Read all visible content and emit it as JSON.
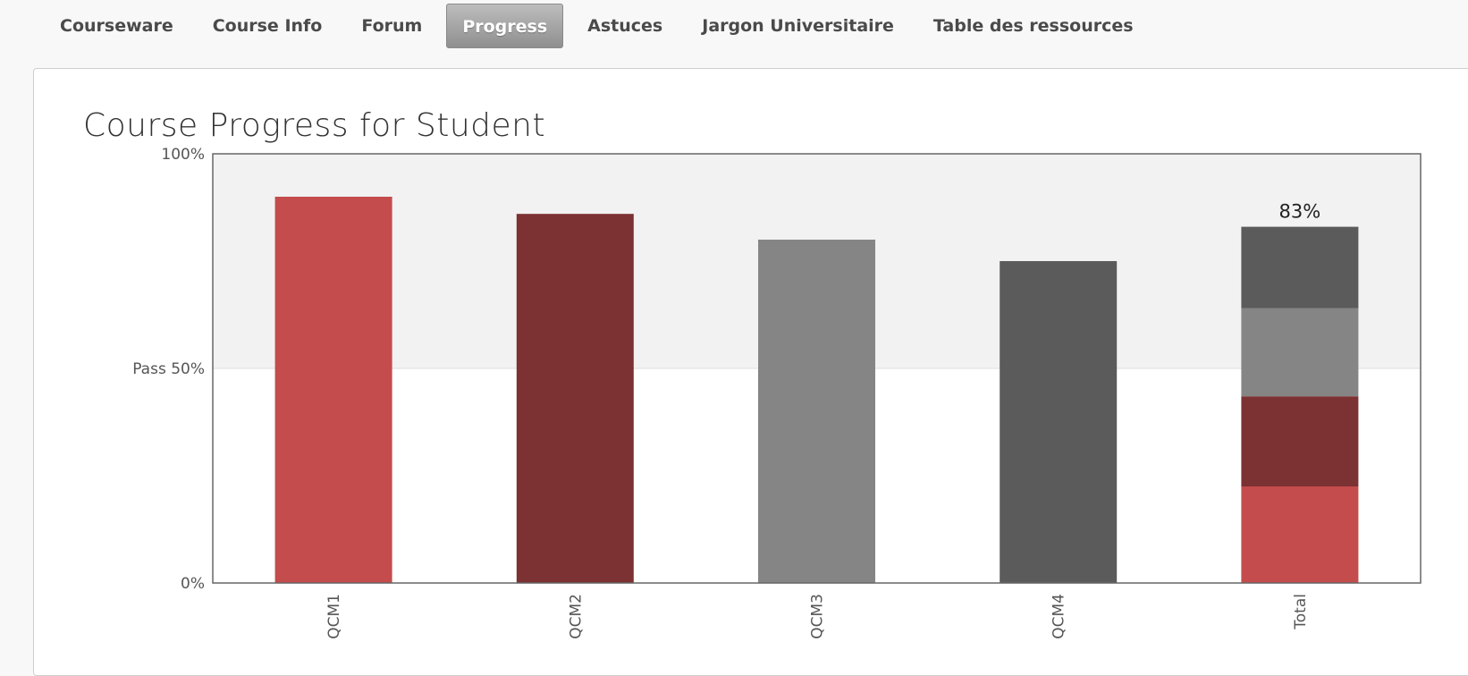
{
  "tabs": [
    {
      "label": "Courseware",
      "active": false
    },
    {
      "label": "Course Info",
      "active": false
    },
    {
      "label": "Forum",
      "active": false
    },
    {
      "label": "Progress",
      "active": true
    },
    {
      "label": "Astuces",
      "active": false
    },
    {
      "label": "Jargon Universitaire",
      "active": false
    },
    {
      "label": "Table des ressources",
      "active": false
    }
  ],
  "page_title": "Course Progress for Student",
  "colors": {
    "qcm1": "#c44c4c",
    "qcm2": "#7c3133",
    "qcm3": "#858585",
    "qcm4": "#5b5b5b",
    "pass_region": "#f2f2f2",
    "frame": "#666666"
  },
  "chart_data": {
    "type": "bar",
    "title": "Course Progress for Student",
    "categories": [
      "QCM1",
      "QCM2",
      "QCM3",
      "QCM4",
      "Total"
    ],
    "values": [
      90,
      86,
      80,
      75,
      83
    ],
    "total": {
      "label": "83%",
      "stack": [
        {
          "category": "QCM1",
          "value": 22.5
        },
        {
          "category": "QCM2",
          "value": 21
        },
        {
          "category": "QCM3",
          "value": 20.5
        },
        {
          "category": "QCM4",
          "value": 19
        }
      ]
    },
    "ylim": [
      0,
      100
    ],
    "yticks": [
      {
        "value": 0,
        "label": "0%"
      },
      {
        "value": 50,
        "label": "Pass 50%"
      },
      {
        "value": 100,
        "label": "100%"
      }
    ],
    "pass_threshold": 50,
    "xlabel": "",
    "ylabel": ""
  }
}
